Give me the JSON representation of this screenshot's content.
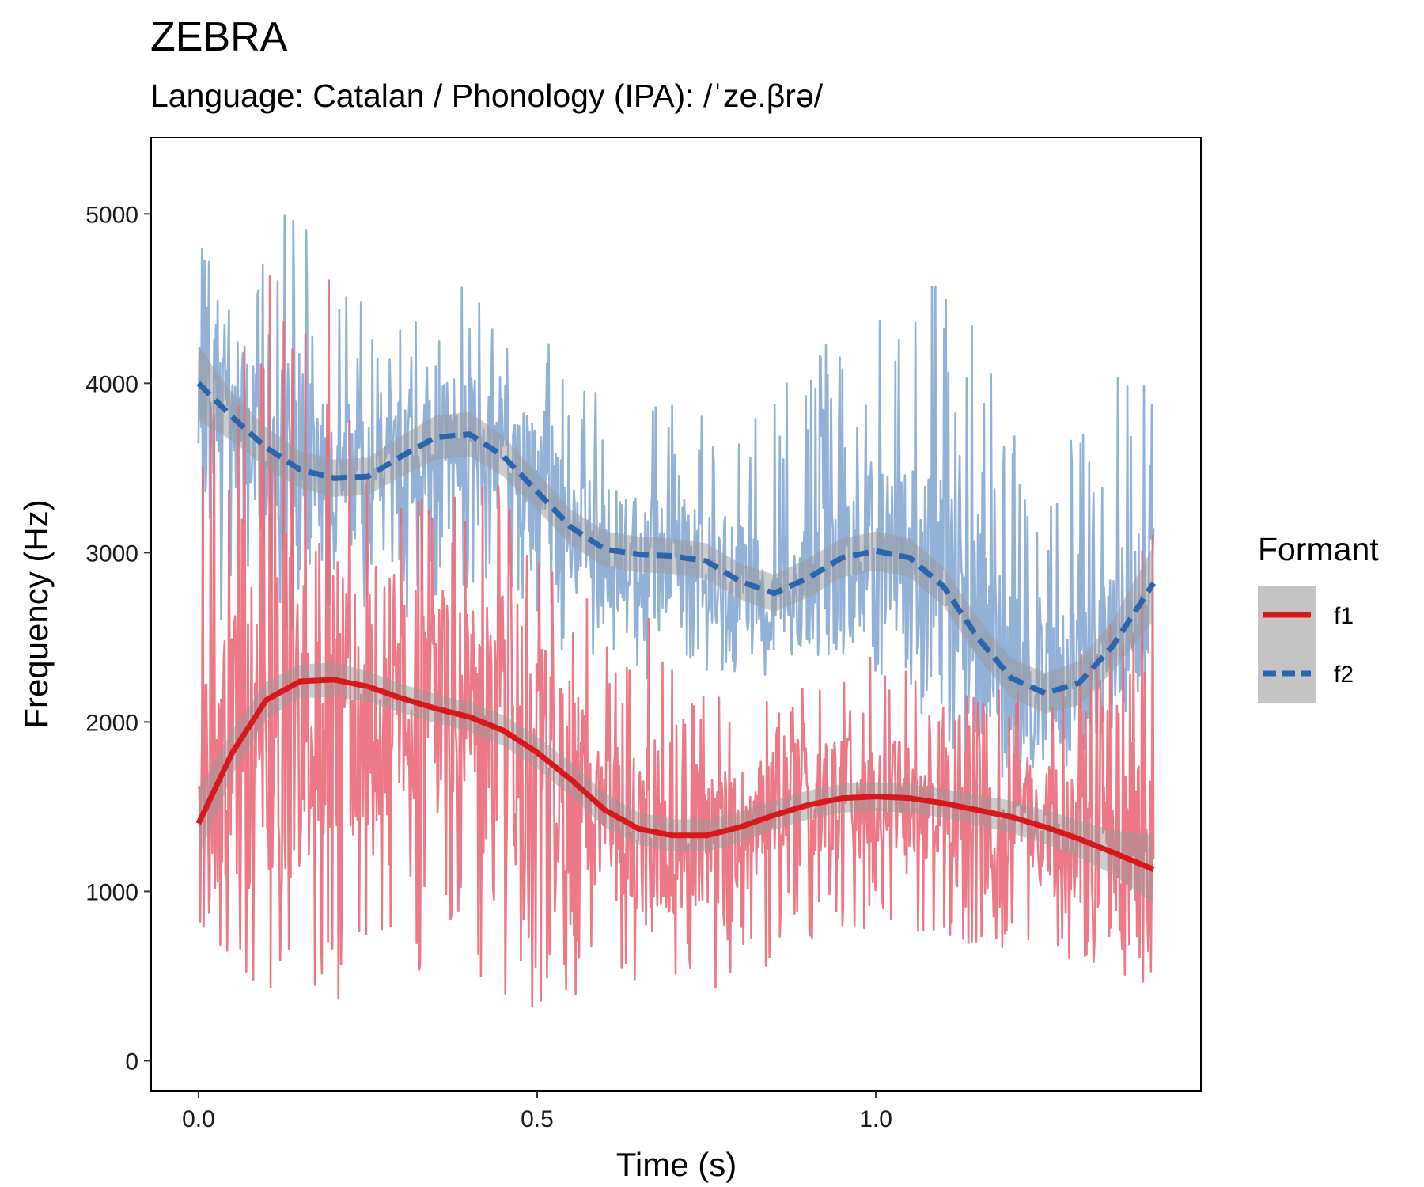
{
  "chart_data": {
    "type": "line",
    "title": "ZEBRA",
    "subtitle": "Language: Catalan / Phonology (IPA): /ˈze.βrə/",
    "xlabel": "Time (s)",
    "ylabel": "Frequency (Hz)",
    "xlim": [
      -0.07,
      1.48
    ],
    "ylim": [
      -180,
      5450
    ],
    "x_ticks": [
      0.0,
      0.5,
      1.0
    ],
    "x_tick_labels": [
      "0.0",
      "0.5",
      "1.0"
    ],
    "y_ticks": [
      0,
      1000,
      2000,
      3000,
      4000,
      5000
    ],
    "y_tick_labels": [
      "0",
      "1000",
      "2000",
      "3000",
      "4000",
      "5000"
    ],
    "grid": false,
    "legend": {
      "title": "Formant",
      "placement": "right"
    },
    "raw_trace_range_s": [
      0.0,
      1.41
    ],
    "series": [
      {
        "name": "f1",
        "color": "#d7191c",
        "raw_color": "#ea6a78",
        "line_style": "solid",
        "smooth": {
          "x": [
            0.0,
            0.05,
            0.1,
            0.15,
            0.2,
            0.25,
            0.3,
            0.35,
            0.4,
            0.45,
            0.5,
            0.55,
            0.6,
            0.65,
            0.7,
            0.75,
            0.8,
            0.85,
            0.9,
            0.95,
            1.0,
            1.05,
            1.1,
            1.15,
            1.2,
            1.25,
            1.3,
            1.35,
            1.41
          ],
          "y": [
            1400,
            1820,
            2130,
            2240,
            2250,
            2210,
            2140,
            2080,
            2030,
            1950,
            1820,
            1660,
            1480,
            1370,
            1330,
            1330,
            1380,
            1450,
            1510,
            1550,
            1560,
            1550,
            1520,
            1480,
            1440,
            1380,
            1310,
            1230,
            1130
          ]
        },
        "ci_halfwidth": [
          200,
          130,
          110,
          100,
          100,
          90,
          85,
          85,
          85,
          90,
          95,
          100,
          100,
          95,
          95,
          95,
          90,
          85,
          85,
          85,
          85,
          85,
          85,
          90,
          95,
          100,
          110,
          130,
          200
        ],
        "raw_profile": {
          "x": [
            0.0,
            0.05,
            0.1,
            0.15,
            0.2,
            0.3,
            0.4,
            0.45,
            0.5,
            0.55,
            0.6,
            0.65,
            0.7,
            0.8,
            0.9,
            1.0,
            1.1,
            1.2,
            1.3,
            1.41
          ],
          "low": [
            400,
            500,
            350,
            300,
            350,
            500,
            450,
            400,
            300,
            350,
            500,
            450,
            400,
            450,
            700,
            800,
            700,
            650,
            500,
            400
          ],
          "high": [
            3800,
            4600,
            4800,
            5200,
            4700,
            3600,
            3400,
            3700,
            3300,
            2900,
            2600,
            2700,
            2500,
            2200,
            2200,
            2400,
            2200,
            2200,
            2400,
            3200
          ]
        }
      },
      {
        "name": "f2",
        "color": "#2b65ad",
        "raw_color": "#86a9d3",
        "line_style": "dashed",
        "smooth": {
          "x": [
            0.0,
            0.05,
            0.1,
            0.15,
            0.2,
            0.25,
            0.3,
            0.35,
            0.4,
            0.45,
            0.5,
            0.55,
            0.6,
            0.65,
            0.7,
            0.75,
            0.8,
            0.85,
            0.9,
            0.95,
            1.0,
            1.05,
            1.1,
            1.15,
            1.2,
            1.25,
            1.3,
            1.35,
            1.41
          ],
          "y": [
            4000,
            3800,
            3620,
            3490,
            3440,
            3450,
            3570,
            3680,
            3700,
            3570,
            3360,
            3150,
            3020,
            2990,
            2980,
            2950,
            2830,
            2760,
            2850,
            2970,
            3010,
            2970,
            2800,
            2500,
            2260,
            2170,
            2230,
            2450,
            2820
          ]
        },
        "ci_halfwidth": [
          220,
          140,
          120,
          110,
          110,
          110,
          120,
          130,
          130,
          120,
          110,
          105,
          105,
          105,
          105,
          105,
          105,
          110,
          115,
          115,
          115,
          115,
          115,
          115,
          115,
          120,
          130,
          150,
          220
        ],
        "raw_profile": {
          "x": [
            0.0,
            0.05,
            0.1,
            0.15,
            0.2,
            0.3,
            0.4,
            0.45,
            0.5,
            0.55,
            0.6,
            0.65,
            0.7,
            0.8,
            0.9,
            1.0,
            1.1,
            1.2,
            1.3,
            1.41
          ],
          "low": [
            2700,
            2300,
            2600,
            2500,
            2700,
            2600,
            2800,
            2700,
            2500,
            2400,
            2300,
            2200,
            2300,
            2200,
            2400,
            2300,
            1800,
            1600,
            1700,
            2300
          ],
          "high": [
            5000,
            4400,
            4800,
            5200,
            4700,
            4400,
            4600,
            4200,
            4300,
            4200,
            3900,
            3900,
            3900,
            3700,
            4200,
            4400,
            4800,
            3800,
            3800,
            4700
          ]
        }
      }
    ]
  }
}
